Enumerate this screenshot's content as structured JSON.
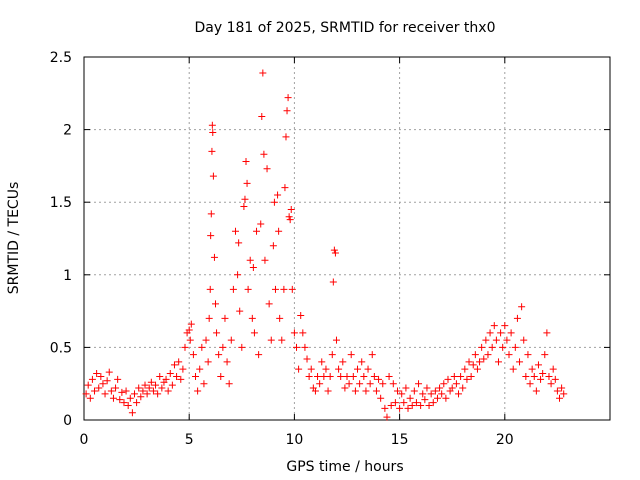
{
  "chart_data": {
    "type": "scatter",
    "title": "Day 181 of 2025, SRMTID for receiver thx0",
    "xlabel": "GPS time / hours",
    "ylabel": "SRMTID / TECUs",
    "xlim": [
      0,
      25
    ],
    "ylim": [
      0,
      2.5
    ],
    "grid": true,
    "marker": "+",
    "color": "#ff0000",
    "x_ticks": [
      {
        "value": 0,
        "label": "0"
      },
      {
        "value": 5,
        "label": "5"
      },
      {
        "value": 10,
        "label": "10"
      },
      {
        "value": 15,
        "label": "15"
      },
      {
        "value": 20,
        "label": "20"
      }
    ],
    "y_ticks": [
      {
        "value": 0,
        "label": "0"
      },
      {
        "value": 0.5,
        "label": "0.5"
      },
      {
        "value": 1,
        "label": "1"
      },
      {
        "value": 1.5,
        "label": "1.5"
      },
      {
        "value": 2,
        "label": "2"
      },
      {
        "value": 2.5,
        "label": "2.5"
      }
    ],
    "series": [
      {
        "name": "SRMTID thx0",
        "points": [
          [
            0.1,
            0.18
          ],
          [
            0.2,
            0.24
          ],
          [
            0.3,
            0.15
          ],
          [
            0.4,
            0.28
          ],
          [
            0.5,
            0.2
          ],
          [
            0.6,
            0.32
          ],
          [
            0.7,
            0.22
          ],
          [
            0.8,
            0.3
          ],
          [
            0.9,
            0.25
          ],
          [
            1.0,
            0.18
          ],
          [
            1.1,
            0.27
          ],
          [
            1.2,
            0.33
          ],
          [
            1.3,
            0.2
          ],
          [
            1.4,
            0.15
          ],
          [
            1.5,
            0.22
          ],
          [
            1.6,
            0.28
          ],
          [
            1.7,
            0.14
          ],
          [
            1.8,
            0.19
          ],
          [
            1.9,
            0.12
          ],
          [
            2.0,
            0.2
          ],
          [
            2.1,
            0.1
          ],
          [
            2.2,
            0.15
          ],
          [
            2.3,
            0.05
          ],
          [
            2.4,
            0.18
          ],
          [
            2.5,
            0.12
          ],
          [
            2.6,
            0.22
          ],
          [
            2.7,
            0.16
          ],
          [
            2.8,
            0.2
          ],
          [
            2.9,
            0.24
          ],
          [
            3.0,
            0.18
          ],
          [
            3.1,
            0.22
          ],
          [
            3.2,
            0.26
          ],
          [
            3.3,
            0.2
          ],
          [
            3.4,
            0.24
          ],
          [
            3.5,
            0.18
          ],
          [
            3.6,
            0.3
          ],
          [
            3.7,
            0.22
          ],
          [
            3.8,
            0.26
          ],
          [
            3.9,
            0.28
          ],
          [
            4.0,
            0.2
          ],
          [
            4.1,
            0.32
          ],
          [
            4.2,
            0.24
          ],
          [
            4.3,
            0.38
          ],
          [
            4.4,
            0.3
          ],
          [
            4.5,
            0.4
          ],
          [
            4.6,
            0.28
          ],
          [
            4.7,
            0.35
          ],
          [
            4.8,
            0.5
          ],
          [
            4.9,
            0.6
          ],
          [
            5.0,
            0.62
          ],
          [
            5.05,
            0.55
          ],
          [
            5.1,
            0.66
          ],
          [
            5.2,
            0.45
          ],
          [
            5.3,
            0.3
          ],
          [
            5.4,
            0.2
          ],
          [
            5.5,
            0.35
          ],
          [
            5.6,
            0.5
          ],
          [
            5.7,
            0.25
          ],
          [
            5.8,
            0.55
          ],
          [
            5.9,
            0.4
          ],
          [
            5.95,
            0.7
          ],
          [
            6.0,
            0.9
          ],
          [
            6.02,
            1.27
          ],
          [
            6.05,
            1.42
          ],
          [
            6.08,
            1.85
          ],
          [
            6.1,
            2.03
          ],
          [
            6.12,
            1.98
          ],
          [
            6.15,
            1.68
          ],
          [
            6.2,
            1.12
          ],
          [
            6.25,
            0.8
          ],
          [
            6.3,
            0.6
          ],
          [
            6.4,
            0.45
          ],
          [
            6.5,
            0.3
          ],
          [
            6.6,
            0.5
          ],
          [
            6.7,
            0.7
          ],
          [
            6.8,
            0.4
          ],
          [
            6.9,
            0.25
          ],
          [
            7.0,
            0.55
          ],
          [
            7.1,
            0.9
          ],
          [
            7.2,
            1.3
          ],
          [
            7.3,
            1.0
          ],
          [
            7.35,
            1.22
          ],
          [
            7.4,
            0.75
          ],
          [
            7.5,
            0.5
          ],
          [
            7.6,
            1.47
          ],
          [
            7.65,
            1.52
          ],
          [
            7.7,
            1.78
          ],
          [
            7.75,
            1.63
          ],
          [
            7.8,
            0.9
          ],
          [
            7.9,
            1.1
          ],
          [
            8.0,
            0.7
          ],
          [
            8.05,
            1.05
          ],
          [
            8.1,
            0.6
          ],
          [
            8.2,
            1.3
          ],
          [
            8.3,
            0.45
          ],
          [
            8.4,
            1.35
          ],
          [
            8.45,
            2.09
          ],
          [
            8.5,
            2.39
          ],
          [
            8.55,
            1.83
          ],
          [
            8.6,
            1.1
          ],
          [
            8.7,
            1.73
          ],
          [
            8.8,
            0.8
          ],
          [
            8.9,
            0.55
          ],
          [
            9.0,
            1.2
          ],
          [
            9.05,
            1.5
          ],
          [
            9.1,
            0.9
          ],
          [
            9.2,
            1.55
          ],
          [
            9.25,
            1.3
          ],
          [
            9.3,
            0.7
          ],
          [
            9.4,
            0.55
          ],
          [
            9.5,
            0.9
          ],
          [
            9.55,
            1.6
          ],
          [
            9.6,
            1.95
          ],
          [
            9.65,
            2.13
          ],
          [
            9.7,
            2.22
          ],
          [
            9.75,
            1.4
          ],
          [
            9.8,
            1.38
          ],
          [
            9.85,
            1.45
          ],
          [
            9.9,
            0.9
          ],
          [
            10.0,
            0.6
          ],
          [
            10.1,
            0.5
          ],
          [
            10.2,
            0.35
          ],
          [
            10.3,
            0.72
          ],
          [
            10.4,
            0.6
          ],
          [
            10.5,
            0.5
          ],
          [
            10.6,
            0.42
          ],
          [
            10.7,
            0.3
          ],
          [
            10.8,
            0.35
          ],
          [
            10.9,
            0.22
          ],
          [
            11.0,
            0.2
          ],
          [
            11.1,
            0.3
          ],
          [
            11.2,
            0.25
          ],
          [
            11.3,
            0.4
          ],
          [
            11.4,
            0.3
          ],
          [
            11.5,
            0.35
          ],
          [
            11.6,
            0.2
          ],
          [
            11.7,
            0.3
          ],
          [
            11.8,
            0.45
          ],
          [
            11.85,
            0.95
          ],
          [
            11.9,
            1.17
          ],
          [
            11.95,
            1.15
          ],
          [
            12.0,
            0.55
          ],
          [
            12.1,
            0.35
          ],
          [
            12.2,
            0.3
          ],
          [
            12.3,
            0.4
          ],
          [
            12.4,
            0.22
          ],
          [
            12.5,
            0.3
          ],
          [
            12.6,
            0.25
          ],
          [
            12.7,
            0.45
          ],
          [
            12.8,
            0.3
          ],
          [
            12.9,
            0.2
          ],
          [
            13.0,
            0.35
          ],
          [
            13.1,
            0.25
          ],
          [
            13.2,
            0.4
          ],
          [
            13.3,
            0.3
          ],
          [
            13.4,
            0.2
          ],
          [
            13.5,
            0.35
          ],
          [
            13.6,
            0.25
          ],
          [
            13.7,
            0.45
          ],
          [
            13.8,
            0.3
          ],
          [
            13.9,
            0.2
          ],
          [
            14.0,
            0.28
          ],
          [
            14.1,
            0.15
          ],
          [
            14.2,
            0.25
          ],
          [
            14.3,
            0.08
          ],
          [
            14.4,
            0.02
          ],
          [
            14.5,
            0.3
          ],
          [
            14.6,
            0.1
          ],
          [
            14.7,
            0.25
          ],
          [
            14.8,
            0.12
          ],
          [
            14.9,
            0.2
          ],
          [
            15.0,
            0.08
          ],
          [
            15.1,
            0.18
          ],
          [
            15.2,
            0.12
          ],
          [
            15.3,
            0.22
          ],
          [
            15.4,
            0.08
          ],
          [
            15.5,
            0.15
          ],
          [
            15.6,
            0.1
          ],
          [
            15.7,
            0.2
          ],
          [
            15.8,
            0.12
          ],
          [
            15.9,
            0.25
          ],
          [
            16.0,
            0.1
          ],
          [
            16.1,
            0.18
          ],
          [
            16.2,
            0.14
          ],
          [
            16.3,
            0.22
          ],
          [
            16.4,
            0.1
          ],
          [
            16.5,
            0.18
          ],
          [
            16.6,
            0.12
          ],
          [
            16.7,
            0.2
          ],
          [
            16.8,
            0.15
          ],
          [
            16.9,
            0.22
          ],
          [
            17.0,
            0.18
          ],
          [
            17.1,
            0.25
          ],
          [
            17.2,
            0.15
          ],
          [
            17.3,
            0.28
          ],
          [
            17.4,
            0.2
          ],
          [
            17.5,
            0.22
          ],
          [
            17.6,
            0.3
          ],
          [
            17.7,
            0.25
          ],
          [
            17.8,
            0.18
          ],
          [
            17.9,
            0.3
          ],
          [
            18.0,
            0.22
          ],
          [
            18.1,
            0.35
          ],
          [
            18.2,
            0.28
          ],
          [
            18.3,
            0.4
          ],
          [
            18.4,
            0.3
          ],
          [
            18.5,
            0.38
          ],
          [
            18.6,
            0.45
          ],
          [
            18.7,
            0.35
          ],
          [
            18.8,
            0.4
          ],
          [
            18.9,
            0.5
          ],
          [
            19.0,
            0.42
          ],
          [
            19.1,
            0.55
          ],
          [
            19.2,
            0.45
          ],
          [
            19.3,
            0.6
          ],
          [
            19.4,
            0.5
          ],
          [
            19.5,
            0.65
          ],
          [
            19.6,
            0.55
          ],
          [
            19.7,
            0.4
          ],
          [
            19.8,
            0.6
          ],
          [
            19.9,
            0.5
          ],
          [
            20.0,
            0.65
          ],
          [
            20.1,
            0.55
          ],
          [
            20.2,
            0.45
          ],
          [
            20.3,
            0.6
          ],
          [
            20.4,
            0.35
          ],
          [
            20.5,
            0.5
          ],
          [
            20.6,
            0.7
          ],
          [
            20.7,
            0.4
          ],
          [
            20.8,
            0.78
          ],
          [
            20.9,
            0.55
          ],
          [
            21.0,
            0.3
          ],
          [
            21.1,
            0.45
          ],
          [
            21.2,
            0.25
          ],
          [
            21.3,
            0.35
          ],
          [
            21.4,
            0.3
          ],
          [
            21.5,
            0.2
          ],
          [
            21.6,
            0.38
          ],
          [
            21.7,
            0.28
          ],
          [
            21.8,
            0.32
          ],
          [
            21.9,
            0.45
          ],
          [
            22.0,
            0.6
          ],
          [
            22.1,
            0.3
          ],
          [
            22.2,
            0.25
          ],
          [
            22.3,
            0.35
          ],
          [
            22.4,
            0.28
          ],
          [
            22.5,
            0.2
          ],
          [
            22.6,
            0.15
          ],
          [
            22.7,
            0.22
          ],
          [
            22.8,
            0.18
          ]
        ]
      }
    ]
  }
}
